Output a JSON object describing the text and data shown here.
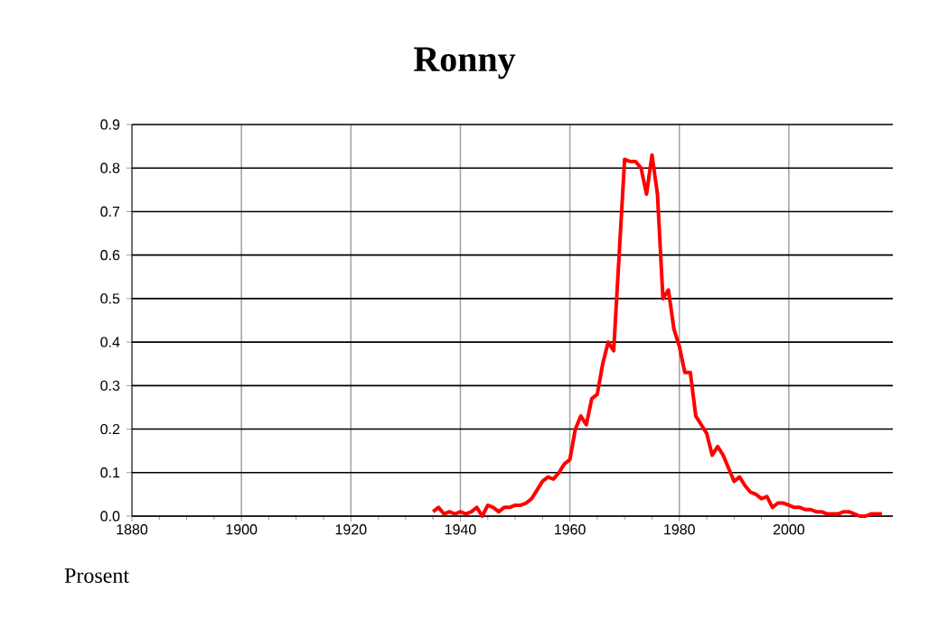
{
  "chart_data": {
    "type": "line",
    "title": "Ronny",
    "ylabel": "Prosent",
    "x": [
      1935,
      1936,
      1937,
      1938,
      1939,
      1940,
      1941,
      1942,
      1943,
      1944,
      1945,
      1946,
      1947,
      1948,
      1949,
      1950,
      1951,
      1952,
      1953,
      1954,
      1955,
      1956,
      1957,
      1958,
      1959,
      1960,
      1961,
      1962,
      1963,
      1964,
      1965,
      1966,
      1967,
      1968,
      1969,
      1970,
      1971,
      1972,
      1973,
      1974,
      1975,
      1976,
      1977,
      1978,
      1979,
      1980,
      1981,
      1982,
      1983,
      1984,
      1985,
      1986,
      1987,
      1988,
      1989,
      1990,
      1991,
      1992,
      1993,
      1994,
      1995,
      1996,
      1997,
      1998,
      1999,
      2000,
      2001,
      2002,
      2003,
      2004,
      2005,
      2006,
      2007,
      2008,
      2009,
      2010,
      2011,
      2012,
      2013,
      2014,
      2015,
      2016,
      2017
    ],
    "series": [
      {
        "color": "#ff0000",
        "values": [
          0.01,
          0.02,
          0.005,
          0.01,
          0.005,
          0.01,
          0.005,
          0.01,
          0.02,
          0.0,
          0.025,
          0.02,
          0.01,
          0.02,
          0.02,
          0.025,
          0.025,
          0.03,
          0.04,
          0.06,
          0.08,
          0.09,
          0.085,
          0.1,
          0.12,
          0.13,
          0.2,
          0.23,
          0.21,
          0.27,
          0.28,
          0.35,
          0.4,
          0.38,
          0.6,
          0.82,
          0.815,
          0.815,
          0.8,
          0.74,
          0.83,
          0.74,
          0.5,
          0.52,
          0.43,
          0.39,
          0.33,
          0.33,
          0.23,
          0.21,
          0.19,
          0.14,
          0.16,
          0.14,
          0.11,
          0.08,
          0.09,
          0.07,
          0.055,
          0.05,
          0.04,
          0.045,
          0.02,
          0.03,
          0.03,
          0.025,
          0.02,
          0.02,
          0.015,
          0.015,
          0.01,
          0.01,
          0.005,
          0.005,
          0.005,
          0.01,
          0.01,
          0.005,
          0.0,
          0.0,
          0.005,
          0.005,
          0.005
        ]
      }
    ],
    "xlim": [
      1880,
      2019
    ],
    "xticks": [
      1880,
      1900,
      1920,
      1940,
      1960,
      1980,
      2000
    ],
    "ylim": [
      0,
      0.9
    ],
    "yticks": [
      {
        "value": 0,
        "label": "0.0"
      },
      0.1,
      0.2,
      0.3,
      0.4,
      0.5,
      0.6,
      0.7,
      0.8,
      0.9
    ],
    "grid": true,
    "marker": "none",
    "line_style": "solid"
  }
}
